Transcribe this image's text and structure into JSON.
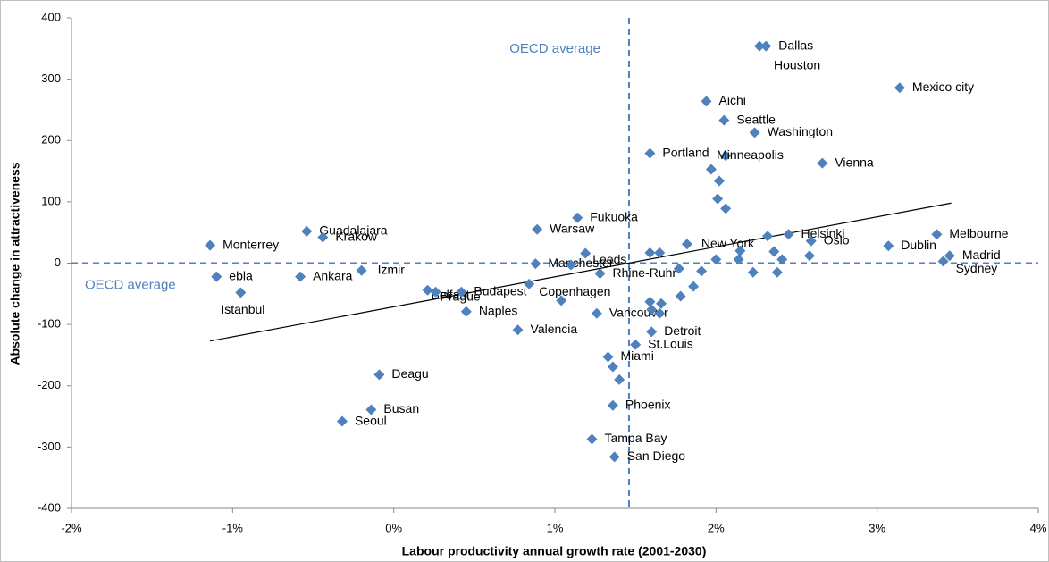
{
  "chart_data": {
    "type": "scatter",
    "xlabel": "Labour productivity annual growth rate (2001-2030)",
    "ylabel": "Absolute change in attractiveness",
    "xlim": [
      -2,
      4
    ],
    "ylim": [
      -400,
      400
    ],
    "xticks": [
      {
        "value": -2,
        "label": "-2%"
      },
      {
        "value": -1,
        "label": "-1%"
      },
      {
        "value": 0,
        "label": "0%"
      },
      {
        "value": 1,
        "label": "1%"
      },
      {
        "value": 2,
        "label": "2%"
      },
      {
        "value": 3,
        "label": "3%"
      },
      {
        "value": 4,
        "label": "4%"
      }
    ],
    "yticks": [
      400,
      300,
      200,
      100,
      0,
      -100,
      -200,
      -300,
      -400
    ],
    "color": "#4f81bd",
    "labels": [
      "Dallas",
      "Houston",
      "Mexico city",
      "Aichi",
      "Seattle",
      "Washington",
      "Portland",
      "Minneapolis",
      "Vienna",
      null,
      null,
      null,
      null,
      "Fukuoka",
      "Warsaw",
      "Guadalajara",
      "Krakow",
      "Monterrey",
      "Helsinki",
      null,
      "Oslo",
      "Melbourne",
      "Dublin",
      "Madrid",
      "Sydney",
      "New York",
      null,
      null,
      null,
      null,
      null,
      null,
      null,
      null,
      "Manchester",
      "Leeds",
      null,
      "Rhine-Ruhr",
      "Izmir",
      "Ankara",
      "ebla",
      "Istanbul",
      "Belfast",
      "Prague",
      "Budapest",
      "Copenhagen",
      "Naples",
      "Vancouver",
      "Valencia",
      "Detroit",
      "St.Louis",
      "Miami",
      null,
      null,
      "Deagu",
      "Busan",
      "Seoul",
      "Phoenix",
      "Tampa Bay",
      "San Diego",
      null,
      null,
      null,
      null,
      null,
      null,
      null,
      null,
      null,
      null,
      null
    ],
    "x": [
      2.31,
      2.27,
      3.14,
      1.94,
      2.05,
      2.24,
      1.59,
      2.06,
      2.66,
      1.97,
      2.02,
      2.01,
      2.06,
      1.14,
      0.89,
      -0.54,
      -0.44,
      -1.14,
      2.45,
      2.32,
      2.59,
      3.37,
      3.07,
      3.45,
      3.41,
      1.82,
      1.59,
      1.65,
      2.0,
      2.15,
      2.14,
      2.36,
      2.41,
      2.58,
      0.88,
      1.19,
      1.1,
      1.28,
      -0.2,
      -0.58,
      -1.1,
      -0.95,
      0.21,
      0.26,
      0.42,
      1.04,
      0.45,
      1.26,
      0.77,
      1.6,
      1.5,
      1.33,
      1.36,
      1.4,
      -0.09,
      -0.14,
      -0.32,
      1.36,
      1.23,
      1.37,
      1.59,
      1.6,
      1.66,
      1.65,
      1.78,
      1.86,
      1.91,
      1.77,
      2.23,
      2.38,
      0.84
    ],
    "y": [
      354,
      354,
      286,
      264,
      233,
      213,
      179,
      175,
      163,
      153,
      134,
      105,
      89,
      74,
      55,
      52,
      42,
      29,
      47,
      44,
      36,
      47,
      28,
      12,
      3,
      31,
      17,
      17,
      6,
      20,
      6,
      19,
      6,
      12,
      -1,
      16,
      -3,
      -17,
      -12,
      -22,
      -22,
      -48,
      -44,
      -47,
      -47,
      -61,
      -79,
      -82,
      -109,
      -112,
      -133,
      -153,
      -169,
      -190,
      -182,
      -239,
      -258,
      -232,
      -287,
      -316,
      -63,
      -76,
      -66,
      -82,
      -54,
      -38,
      -13,
      -9,
      -15,
      -15,
      -34
    ],
    "reference_lines": [
      {
        "axis": "x",
        "value": 1.46,
        "label": "OECD average"
      },
      {
        "axis": "y",
        "value": 0,
        "label": "OECD average"
      }
    ],
    "trendline": {
      "x": [
        -1.14,
        3.46
      ],
      "y": [
        -127,
        98
      ]
    }
  }
}
